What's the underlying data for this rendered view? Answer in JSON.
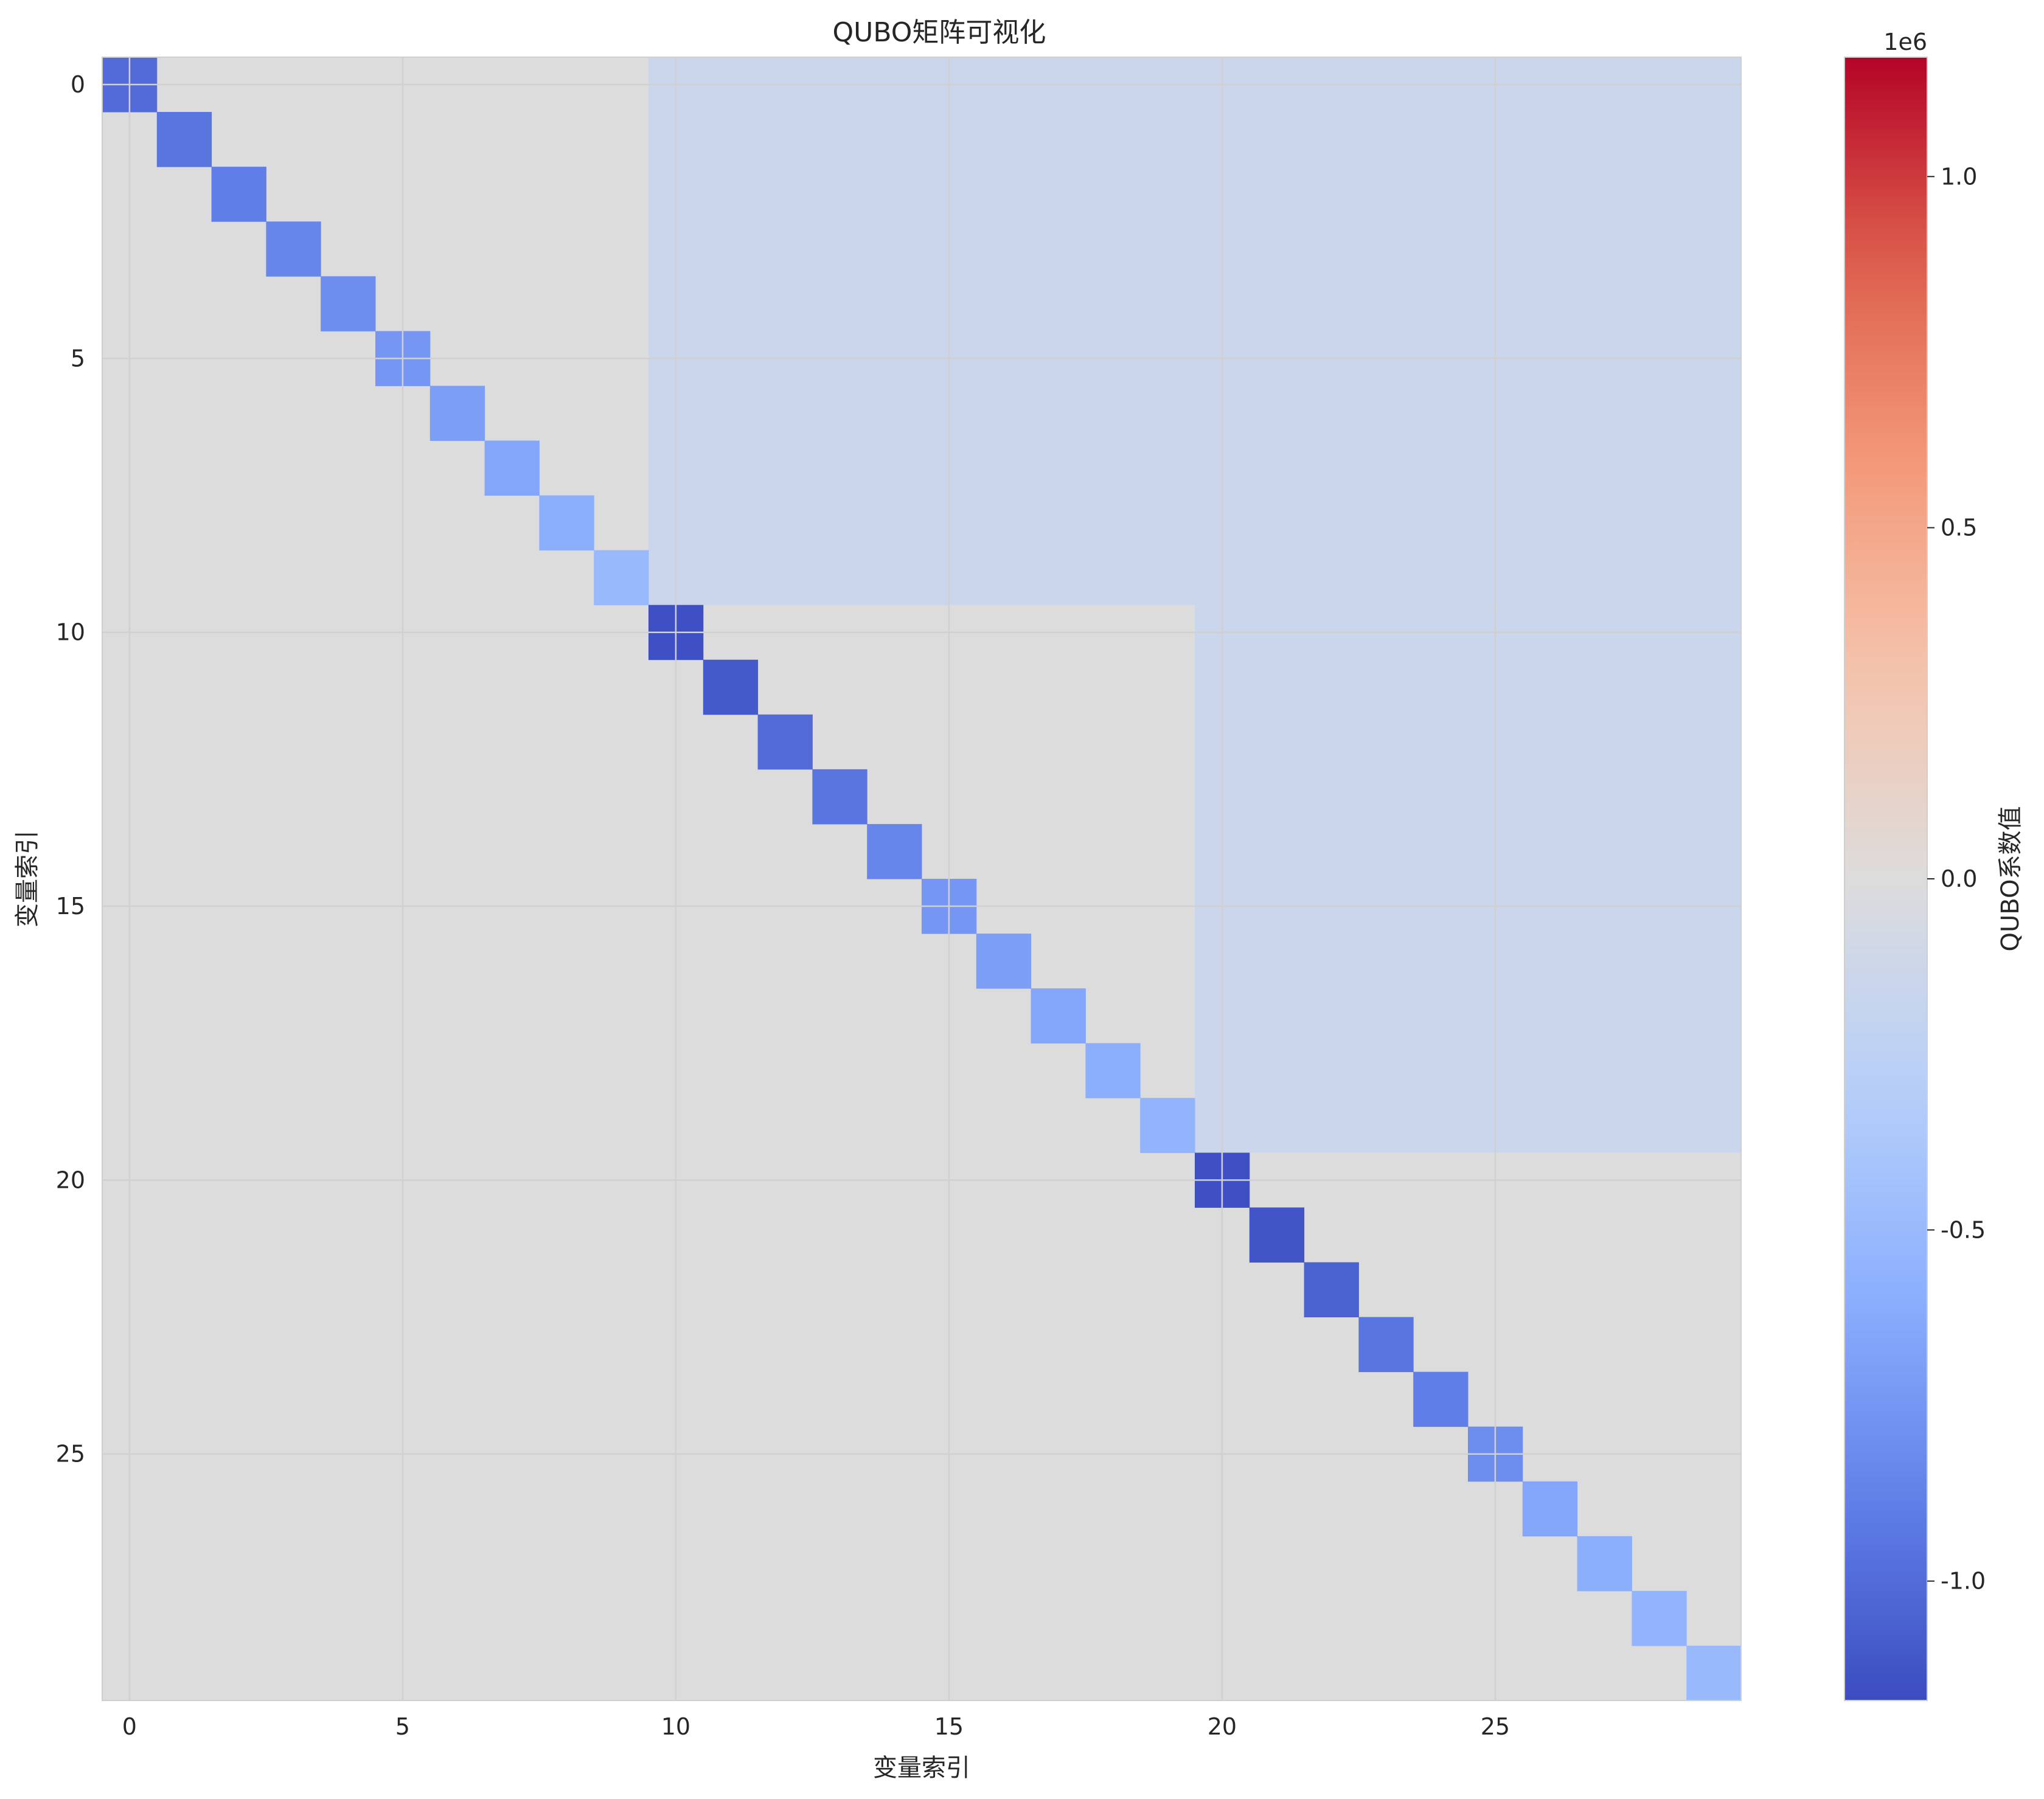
{
  "chart_data": {
    "type": "heatmap",
    "title": "QUBO矩阵可视化",
    "xlabel": "变量索引",
    "ylabel": "变量索引",
    "size": 30,
    "x_ticks": [
      "0",
      "5",
      "10",
      "15",
      "20",
      "25"
    ],
    "y_ticks": [
      "0",
      "5",
      "10",
      "15",
      "20",
      "25"
    ],
    "colormap": "coolwarm",
    "vmin": -1170000,
    "vmax": 1170000,
    "grid": true,
    "colorbar": {
      "label": "QUBO系数值",
      "offset_text": "1e6",
      "ticks": [
        "1.0",
        "0.5",
        "0.0",
        "-0.5",
        "-1.0"
      ],
      "tick_values": [
        1000000,
        500000,
        0,
        -500000,
        -1000000
      ]
    },
    "diagonal": [
      -1000000,
      -950000,
      -900000,
      -850000,
      -800000,
      -750000,
      -700000,
      -650000,
      -600000,
      -500000,
      -1150000,
      -1100000,
      -1000000,
      -950000,
      -850000,
      -750000,
      -700000,
      -650000,
      -600000,
      -550000,
      -1150000,
      -1120000,
      -1050000,
      -950000,
      -900000,
      -800000,
      -650000,
      -600000,
      -550000,
      -500000
    ],
    "off_diagonal_blocks": [
      {
        "rows": [
          0,
          9
        ],
        "cols": [
          10,
          29
        ],
        "value": -150000
      },
      {
        "rows": [
          10,
          19
        ],
        "cols": [
          20,
          29
        ],
        "value": -150000
      }
    ],
    "other_value": 0
  }
}
